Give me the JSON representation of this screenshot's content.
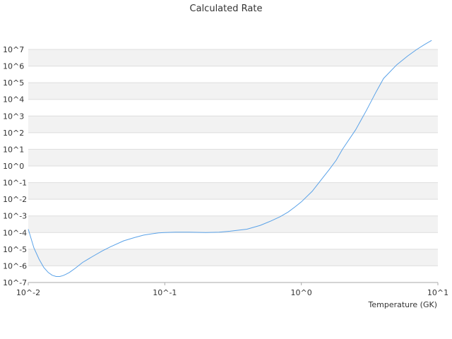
{
  "chart_data": {
    "type": "line",
    "title": "Calculated Rate",
    "xlabel": "Temperature (GK)",
    "ylabel": "",
    "x_scale": "log",
    "y_scale": "log",
    "xlim": [
      0.01,
      10
    ],
    "ylim": [
      1e-07,
      10000000.0
    ],
    "grid": "alternating horizontal bands",
    "legend": "none",
    "x_tick_labels": [
      "10^-2",
      "10^-1",
      "10^0",
      "10^1"
    ],
    "y_tick_labels": [
      "10^7",
      "10^6",
      "10^5",
      "10^4",
      "10^3",
      "10^2",
      "10^1",
      "10^0",
      "10^-1",
      "10^-2",
      "10^-3",
      "10^-4",
      "10^-5",
      "10^-6",
      "10^-7"
    ],
    "colors": {
      "line": "#5aa2e8",
      "band": "#f2f2f2",
      "grid": "#dddddd"
    },
    "series": [
      {
        "x": [
          0.01,
          0.011,
          0.012,
          0.013,
          0.014,
          0.015,
          0.016,
          0.017,
          0.018,
          0.019,
          0.02,
          0.022,
          0.025,
          0.03,
          0.035,
          0.04,
          0.05,
          0.06,
          0.07,
          0.08,
          0.09,
          0.1,
          0.12,
          0.15,
          0.2,
          0.25,
          0.3,
          0.4,
          0.5,
          0.6,
          0.7,
          0.8,
          0.9,
          1.0,
          1.2,
          1.4,
          1.6,
          1.8,
          2.0,
          2.5,
          3.0,
          3.5,
          4.0,
          5.0,
          6.0,
          7.0,
          8.0,
          9.0
        ],
        "y": [
          0.00016,
          1.2e-05,
          2.5e-06,
          8e-07,
          4e-07,
          2.7e-07,
          2.3e-07,
          2.3e-07,
          2.6e-07,
          3.2e-07,
          4e-07,
          7e-07,
          1.6e-06,
          3.9e-06,
          8e-06,
          1.4e-05,
          3.2e-05,
          5e-05,
          7e-05,
          8.4e-05,
          9.5e-05,
          0.0001,
          0.000105,
          0.000105,
          0.0001,
          0.000105,
          0.00012,
          0.00016,
          0.00027,
          0.0005,
          0.0009,
          0.0017,
          0.0035,
          0.007,
          0.03,
          0.15,
          0.6,
          2.2,
          10,
          150,
          2200,
          25000.0,
          180000.0,
          1200000.0,
          4000000.0,
          10000000.0,
          20000000.0,
          35000000.0
        ]
      }
    ]
  }
}
